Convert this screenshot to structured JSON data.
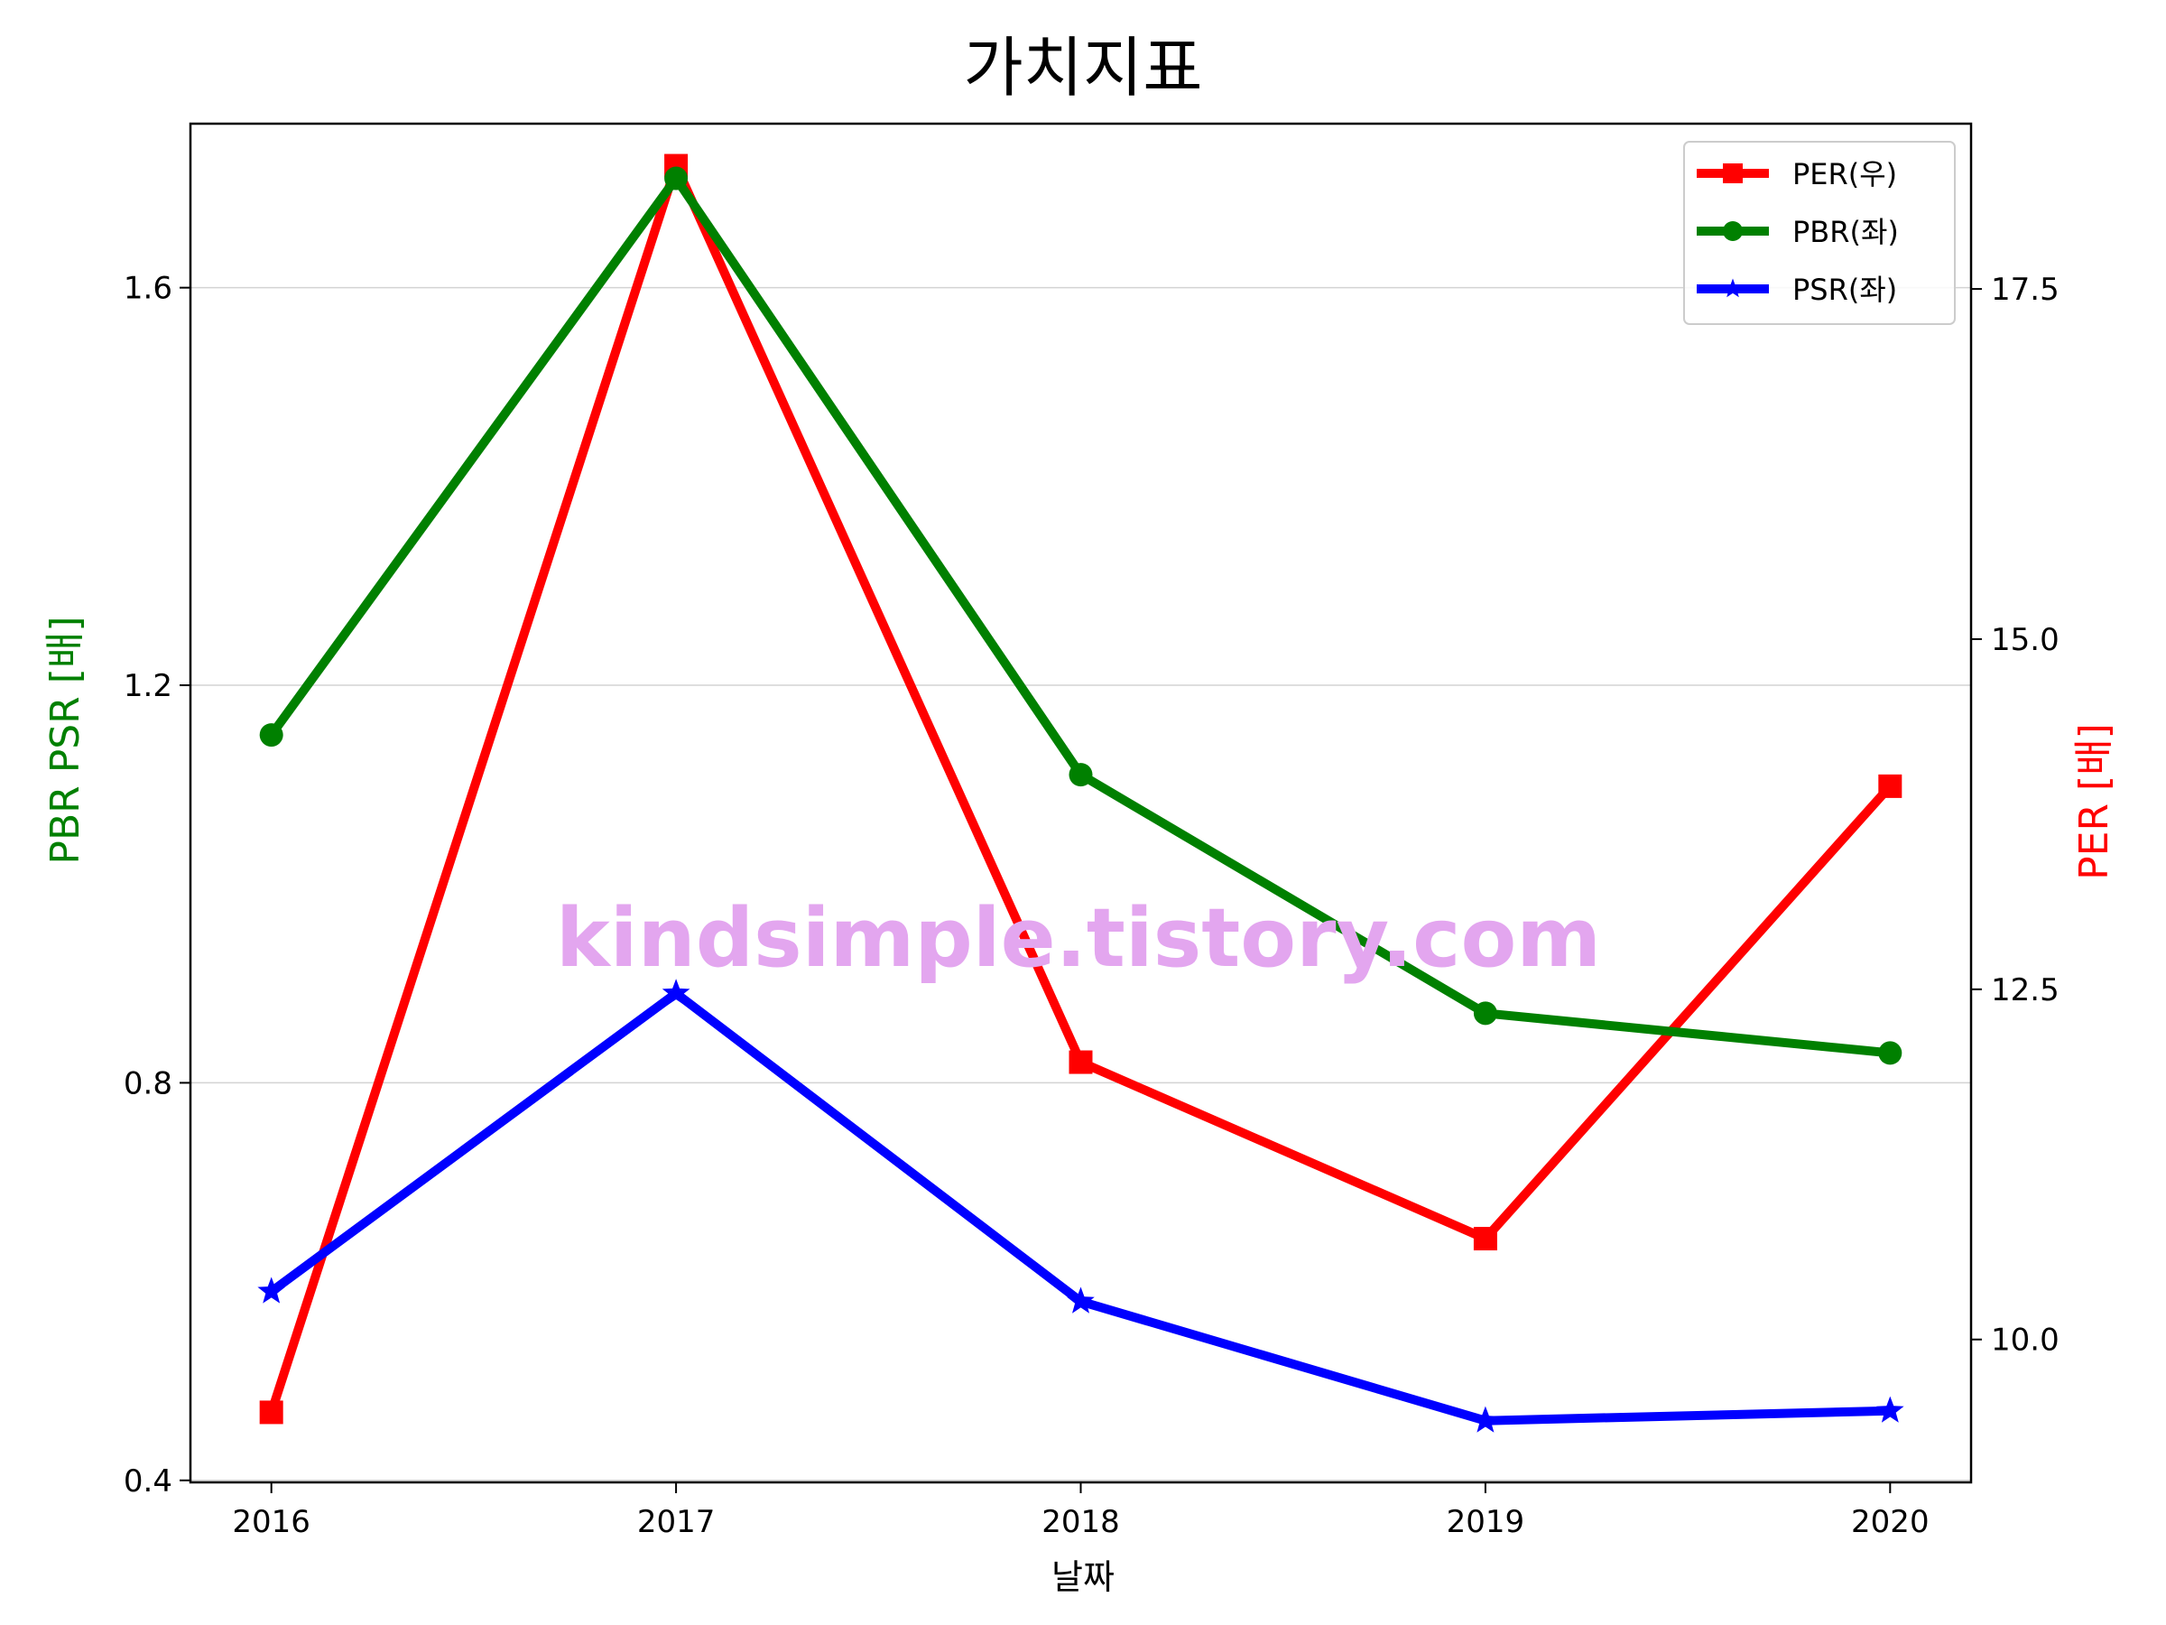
{
  "chart_data": {
    "type": "line",
    "title": "가치지표",
    "xlabel": "날짜",
    "ylabel_left": "PBR PSR [배]",
    "ylabel_right": "PER [배]",
    "watermark": "kindsimple.tistory.com",
    "x": [
      "2016",
      "2017",
      "2018",
      "2019",
      "2020"
    ],
    "xlim": [
      2015.8,
      2020.2
    ],
    "ylim_left": [
      0.398,
      1.765
    ],
    "ylim_right": [
      8.98,
      18.68
    ],
    "yticks_left": [
      0.4,
      0.8,
      1.2,
      1.6
    ],
    "yticks_left_labels": [
      "0.4",
      "0.8",
      "1.2",
      "1.6"
    ],
    "yticks_right": [
      10.0,
      12.5,
      15.0,
      17.5
    ],
    "yticks_right_labels": [
      "10.0",
      "12.5",
      "15.0",
      "17.5"
    ],
    "grid": "horizontal-left",
    "legend_position": "top-right",
    "series": [
      {
        "name": "PER(우)",
        "axis": "right",
        "color": "#ff0000",
        "marker": "square",
        "values": [
          9.48,
          18.38,
          11.98,
          10.72,
          13.95
        ]
      },
      {
        "name": "PBR(좌)",
        "axis": "left",
        "color": "#008000",
        "marker": "circle",
        "values": [
          1.15,
          1.71,
          1.11,
          0.87,
          0.83
        ]
      },
      {
        "name": "PSR(좌)",
        "axis": "left",
        "color": "#0000ff",
        "marker": "star",
        "values": [
          0.59,
          0.89,
          0.58,
          0.46,
          0.47
        ]
      }
    ],
    "colors": {
      "left_axis_label": "#008000",
      "right_axis_label": "#ff0000",
      "watermark": "#e3a6ef"
    }
  }
}
